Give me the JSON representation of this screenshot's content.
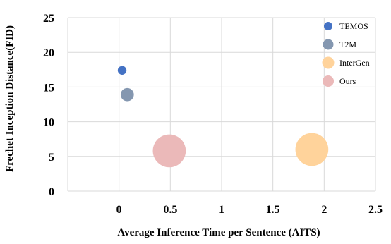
{
  "chart_data": {
    "type": "scatter",
    "title": "",
    "xlabel": "Average Inference Time per Sentence (AITS)",
    "ylabel": "Frechet Inception Distance(FID)",
    "xlim": [
      -0.5,
      2.5
    ],
    "ylim": [
      0,
      25
    ],
    "xticks": [
      "0",
      "0.5",
      "1",
      "1.5",
      "2",
      "2.5"
    ],
    "yticks": [
      "0",
      "5",
      "10",
      "15",
      "20",
      "25"
    ],
    "grid": true,
    "legend_position": "top-right",
    "series": [
      {
        "name": "TEMOS",
        "x": 0.03,
        "y": 17.4,
        "size": 0.35,
        "color": "#4472c4"
      },
      {
        "name": "T2M",
        "x": 0.08,
        "y": 13.9,
        "size": 0.8,
        "color": "#8497b0"
      },
      {
        "name": "InterGen",
        "x": 1.88,
        "y": 6.0,
        "size": 5.0,
        "color": "#ffd39b"
      },
      {
        "name": "Ours",
        "x": 0.49,
        "y": 5.8,
        "size": 5.0,
        "color": "#ebb9b9"
      }
    ]
  }
}
